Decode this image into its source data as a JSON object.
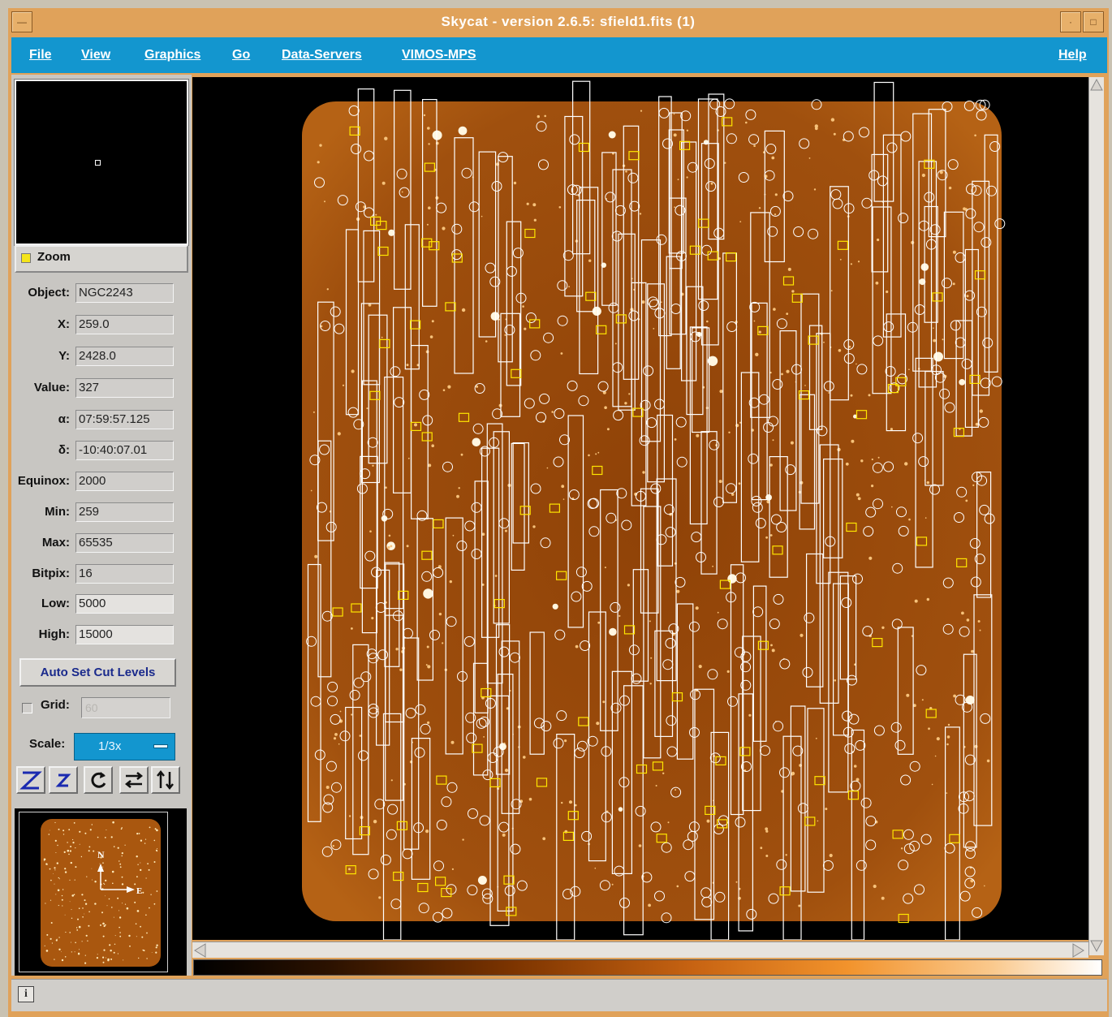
{
  "window": {
    "title": "Skycat - version 2.6.5: sfield1.fits (1)"
  },
  "menubar": {
    "items": [
      {
        "label": "File"
      },
      {
        "label": "View"
      },
      {
        "label": "Graphics"
      },
      {
        "label": "Go"
      },
      {
        "label": "Data-Servers"
      },
      {
        "label": "VIMOS-MPS"
      }
    ],
    "help_label": "Help"
  },
  "zoom": {
    "label": "Zoom",
    "checked": true,
    "check_color": "#f5e51a"
  },
  "fields": {
    "object": {
      "label": "Object:",
      "value": "NGC2243"
    },
    "x": {
      "label": "X:",
      "value": "259.0"
    },
    "y": {
      "label": "Y:",
      "value": "2428.0"
    },
    "value": {
      "label": "Value:",
      "value": "327"
    },
    "alpha": {
      "label": "α:",
      "value": "07:59:57.125"
    },
    "delta": {
      "label": "δ:",
      "value": "-10:40:07.01"
    },
    "equinox": {
      "label": "Equinox:",
      "value": "2000"
    },
    "min": {
      "label": "Min:",
      "value": "259"
    },
    "max": {
      "label": "Max:",
      "value": "65535"
    },
    "bitpix": {
      "label": "Bitpix:",
      "value": "16"
    },
    "low": {
      "label": "Low:",
      "value": "5000"
    },
    "high": {
      "label": "High:",
      "value": "15000"
    }
  },
  "controls": {
    "auto_cut_label": "Auto Set Cut Levels",
    "grid_label": "Grid:",
    "grid_value": "60",
    "scale_label": "Scale:",
    "scale_value": "1/3x"
  },
  "tools": [
    {
      "icon": "zoom-in-icon"
    },
    {
      "icon": "zoom-out-icon"
    },
    {
      "icon": "rotate-icon"
    },
    {
      "icon": "flip-x-icon"
    },
    {
      "icon": "flip-y-icon"
    }
  ],
  "thumbnail": {
    "compass_north": "N",
    "compass_east": "E"
  },
  "colors": {
    "menubar": "#1396cf",
    "titlebar": "#e0a25a",
    "image_field": "#9a4a0c",
    "overlay": "#ffffff",
    "marker": "#ffe600"
  },
  "statusbar": {
    "icon": "info-icon"
  }
}
